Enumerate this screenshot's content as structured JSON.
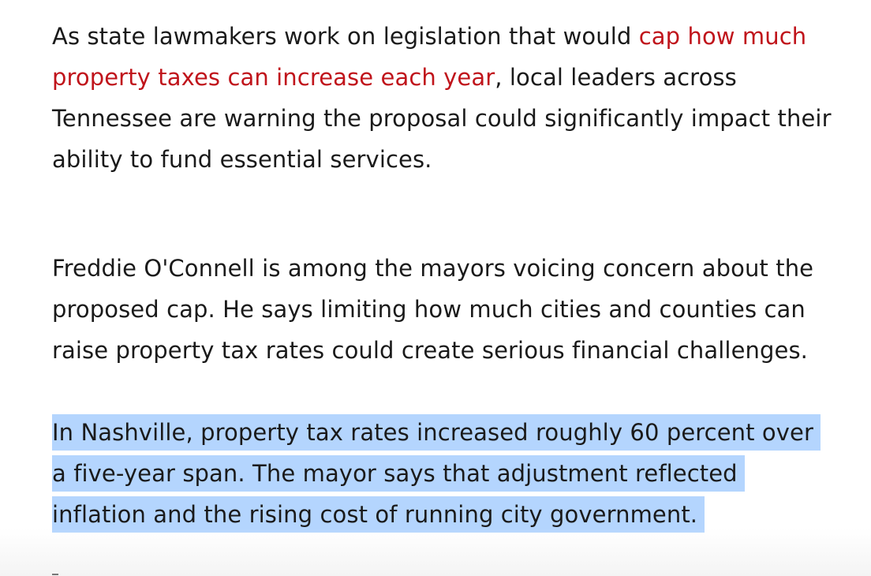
{
  "article": {
    "paragraphs": [
      {
        "before": "As state lawmakers work on legislation that would ",
        "link": "cap how much property taxes can increase each year",
        "after": ", local leaders across Tennessee are warning the proposal could significantly impact their ability to fund essential services."
      },
      {
        "text": "Freddie O'Connell is among the mayors voicing concern about the proposed cap. He says limiting how much cities and counties can raise property tax rates could create serious financial challenges."
      },
      {
        "text": "In Nashville, property tax rates increased roughly 60 percent over a five-year span. The mayor says that adjustment reflected inflation and the rising cost of running city government.",
        "selected": true
      }
    ]
  },
  "colors": {
    "link": "#c0141b",
    "selection": "#b4d5fe",
    "text": "#1a1a1a"
  }
}
